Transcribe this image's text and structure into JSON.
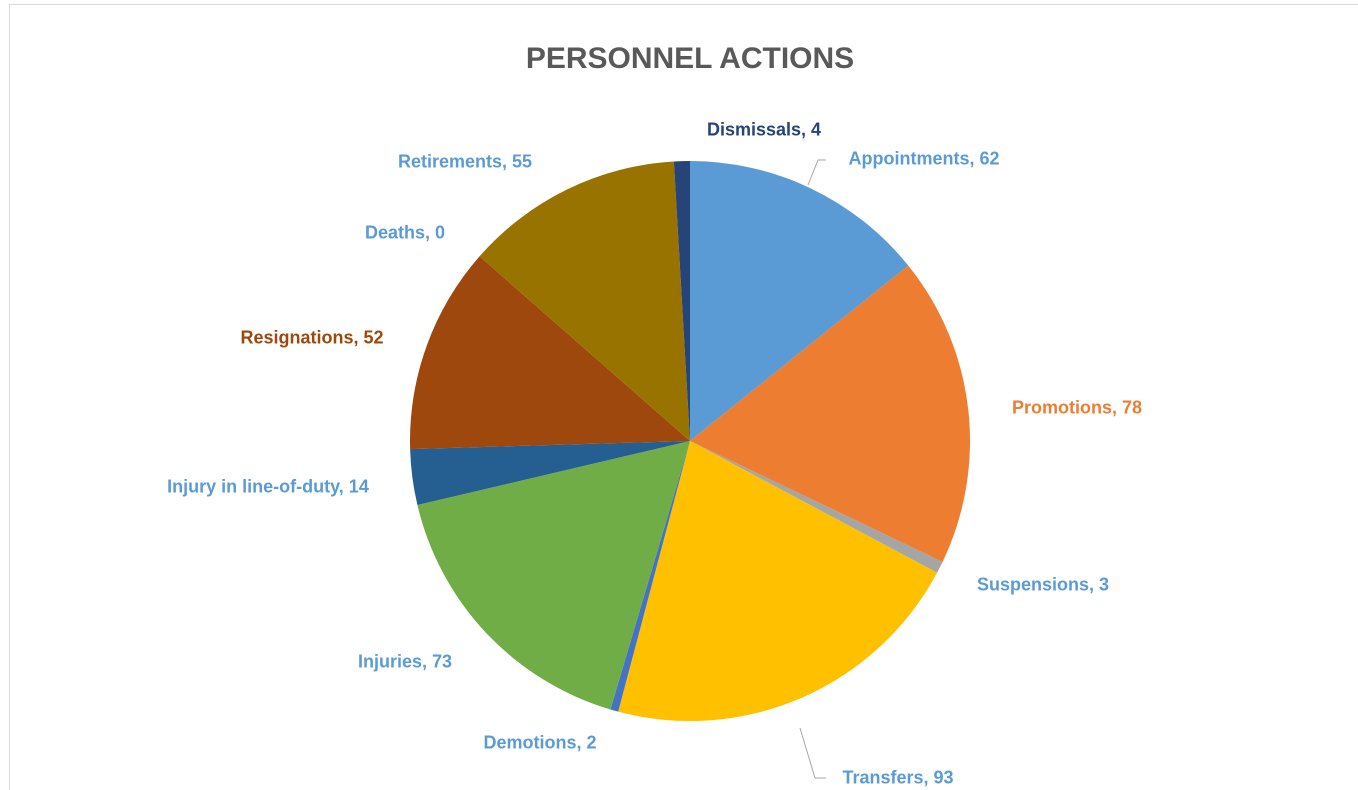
{
  "chart_data": {
    "type": "pie",
    "title": "PERSONNEL ACTIONS",
    "values": [
      62,
      78,
      3,
      93,
      2,
      73,
      14,
      52,
      0,
      55,
      4
    ],
    "value_labels": [
      "Appointments, 62",
      "Promotions, 78",
      "Suspensions, 3",
      "Transfers, 93",
      "Demotions, 2",
      "Injuries, 73",
      "Injury in line-of-duty, 14",
      "Resignations, 52",
      "Deaths, 0",
      "Retirements, 55",
      "Dismissals, 4"
    ],
    "colors": [
      "#5b9bd5",
      "#ed7d31",
      "#a5a5a5",
      "#ffc000",
      "#4472c4",
      "#70ad47",
      "#255e91",
      "#9e480e",
      "#636363",
      "#997300",
      "#264478"
    ],
    "label_colors": [
      "#5b9bd5",
      "#ed7d31",
      "#5b9bd5",
      "#5b9bd5",
      "#5b9bd5",
      "#5b9bd5",
      "#5b9bd5",
      "#9e480e",
      "#5b9bd5",
      "#5b9bd5",
      "#264478"
    ]
  }
}
